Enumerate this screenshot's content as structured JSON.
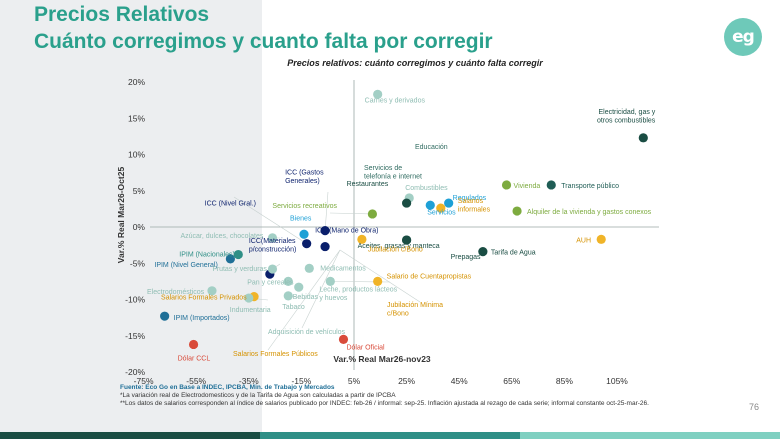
{
  "slide": {
    "title_line1": "Precios Relativos",
    "title_line2": "Cuánto corregimos y cuanto falta por corregir",
    "logo_text": "eg",
    "page_number": "76",
    "source": "Fuente: Eco Go en Base a INDEC, IPCBA, Min. de Trabajo y Mercados",
    "note_1": "*La variación real de Electrodomesticos y de la Tarifa de Agua son calculadas a partir de IPCBA",
    "note_2": "**Los datos de salarios corresponden al índice de salarios publicado por INDEC:  feb-26 / informal: sep-25. Inflación ajustada al rezago de cada serie; informal constante oct-25-mar-26."
  },
  "colors": {
    "accent": "#2aa08c",
    "dark_green": "#1a4d43",
    "teal": "#2f8f86",
    "light_teal": "#7fd0c1",
    "background_band": "#eceef0"
  },
  "chart_data": {
    "type": "scatter",
    "title": "Precios relativos: cuánto corregimos y cuánto falta corregir",
    "xlabel": "Var.% Real Mar26-nov23",
    "ylabel": "Var.% Real Mar26-Oct25",
    "xlim": [
      -75,
      125
    ],
    "ylim": [
      -20,
      20
    ],
    "x_ticks": [
      -75,
      -55,
      -35,
      -15,
      5,
      25,
      45,
      65,
      85,
      105
    ],
    "y_ticks": [
      20,
      15,
      10,
      5,
      0,
      -5,
      -10,
      -15,
      -20
    ],
    "x_tick_labels": [
      "-75%",
      "-55%",
      "-35%",
      "-15%",
      "5%",
      "25%",
      "45%",
      "65%",
      "85%",
      "105%"
    ],
    "y_tick_labels": [
      "20%",
      "15%",
      "10%",
      "5%",
      "0%",
      "-5%",
      "-10%",
      "-15%",
      "-20%"
    ],
    "grid": false,
    "legend": "none",
    "points": [
      {
        "label": "Carnes y derivados",
        "x": 14,
        "y": 18.3,
        "color": "#a3cfc5"
      },
      {
        "label": "Electricidad, gas y otros combustibles",
        "x": 115,
        "y": 12.3,
        "color": "#1a4d43"
      },
      {
        "label": "Educación",
        "x": null,
        "y": null,
        "color": "#2f6b60"
      },
      {
        "label": "Servicios  de telefonía e internet",
        "x": null,
        "y": null,
        "color": "#2f6b60"
      },
      {
        "label": "Vivienda",
        "x": 63,
        "y": 5.8,
        "color": "#7dab3f"
      },
      {
        "label": "Transporte público",
        "x": 80,
        "y": 5.8,
        "color": "#1f5d55"
      },
      {
        "label": "Combustibles",
        "x": 26,
        "y": 4,
        "color": "#a3cfc5"
      },
      {
        "label": "Regulados",
        "x": 41,
        "y": 3.3,
        "color": "#1ea0d6"
      },
      {
        "label": "Restaurantes",
        "x": 25,
        "y": 3.3,
        "color": "#1a4d43"
      },
      {
        "label": "Servicios",
        "x": 34,
        "y": 3,
        "color": "#1ea0d6"
      },
      {
        "label": "Salarios informales",
        "x": 38,
        "y": 2.6,
        "color": "#f0b428"
      },
      {
        "label": "Alquiler de la vivienda y gastos conexos",
        "x": 67,
        "y": 2.2,
        "color": "#7dab3f"
      },
      {
        "label": "Servicios recreativos",
        "x": 12,
        "y": 1.8,
        "color": "#7dab3f"
      },
      {
        "label": "ICC (Gastos Generales)",
        "x": -6,
        "y": -0.5,
        "color": "#0a1f6b"
      },
      {
        "label": "ICC (Nivel Gral.)",
        "x": -13,
        "y": -2.3,
        "color": "#0a1f6b"
      },
      {
        "label": "ICC (Mano de Obra)",
        "x": -6,
        "y": -2.7,
        "color": "#0a1f6b"
      },
      {
        "label": "Bienes",
        "x": -14,
        "y": -1,
        "color": "#1ea0d6"
      },
      {
        "label": "Aceites, grasas y manteca",
        "x": 25,
        "y": -1.8,
        "color": "#1a4d43"
      },
      {
        "label": "Prepagas",
        "x": 25,
        "y": -1.8,
        "color": "#1a4d43"
      },
      {
        "label": "Tarifa de Agua",
        "x": 54,
        "y": -3.4,
        "color": "#1a4d43"
      },
      {
        "label": "AUH",
        "x": 99,
        "y": -1.7,
        "color": "#f0b428"
      },
      {
        "label": "Jubilación c/Bono",
        "x": 8,
        "y": -1.7,
        "color": "#f0b428"
      },
      {
        "label": "Azúcar, dulces, chocolates",
        "x": -26,
        "y": -1.5,
        "color": "#a3cfc5"
      },
      {
        "label": "IPIM (Nacionales)",
        "x": -39,
        "y": -3.8,
        "color": "#2f8f86"
      },
      {
        "label": "IPIM (Nivel General)",
        "x": -42,
        "y": -4.4,
        "color": "#1f6f97"
      },
      {
        "label": "ICC(Materiales p/construcción)",
        "x": -27,
        "y": -6.5,
        "color": "#0a1f6b"
      },
      {
        "label": "Frutas y verduras",
        "x": -26,
        "y": -5.8,
        "color": "#a3cfc5"
      },
      {
        "label": "Medicamentos",
        "x": -12,
        "y": -5.7,
        "color": "#a3cfc5"
      },
      {
        "label": "Salario de Cuentapropistas",
        "x": 14,
        "y": -7.5,
        "color": "#f0b428"
      },
      {
        "label": "Pan y cereales",
        "x": -20,
        "y": -7.5,
        "color": "#a3cfc5"
      },
      {
        "label": "Leche, productos lácteos y huevos",
        "x": -4,
        "y": -7.5,
        "color": "#a3cfc5"
      },
      {
        "label": "Bebidas",
        "x": -16,
        "y": -8.3,
        "color": "#a3cfc5"
      },
      {
        "label": "Electrodomésticos",
        "x": -49,
        "y": -8.8,
        "color": "#a3cfc5"
      },
      {
        "label": "Salarios Formales Privados",
        "x": -33,
        "y": -9.6,
        "color": "#f0b428"
      },
      {
        "label": "Tabaco",
        "x": -20,
        "y": -9.5,
        "color": "#a3cfc5"
      },
      {
        "label": "Indumentaria",
        "x": -35,
        "y": -9.8,
        "color": "#a3cfc5"
      },
      {
        "label": "Jubilación Mínima c/Bono",
        "x": null,
        "y": null,
        "color": "#f0b428"
      },
      {
        "label": "IPIM (Importados)",
        "x": -67,
        "y": -12.3,
        "color": "#1f6f97"
      },
      {
        "label": "Adquisición de vehículos",
        "x": null,
        "y": null,
        "color": "#a3cfc5"
      },
      {
        "label": "Dólar Oficial",
        "x": 1,
        "y": -15.5,
        "color": "#d94b3a"
      },
      {
        "label": "Dólar CCL",
        "x": -56,
        "y": -16.2,
        "color": "#d94b3a"
      },
      {
        "label": "Salarios Formales Públicos",
        "x": null,
        "y": null,
        "color": "#f0b428"
      }
    ]
  }
}
